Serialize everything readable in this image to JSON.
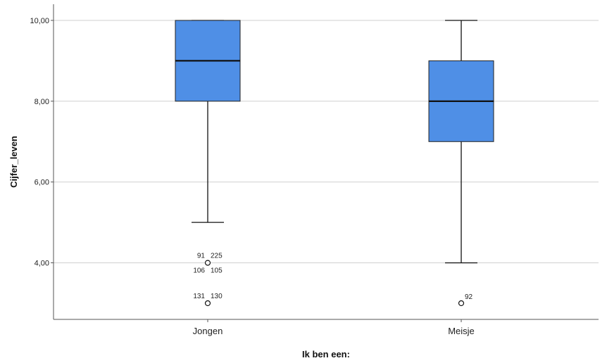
{
  "chart_data": {
    "type": "box",
    "xlabel": "Ik ben een:",
    "ylabel": "Cijfer_leven",
    "ylim": [
      2.6,
      10.4
    ],
    "yticks": [
      {
        "value": 4,
        "label": "4,00"
      },
      {
        "value": 6,
        "label": "6,00"
      },
      {
        "value": 8,
        "label": "8,00"
      },
      {
        "value": 10,
        "label": "10,00"
      }
    ],
    "grid": true,
    "box_color": "#4f8fe6",
    "categories": [
      "Jongen",
      "Meisje"
    ],
    "boxes": [
      {
        "category": "Jongen",
        "whisker_low": 5,
        "q1": 8,
        "median": 9,
        "q3": 10,
        "whisker_high": 10,
        "outliers": [
          {
            "value": 4,
            "labels": [
              "91",
              "225",
              "106",
              "105"
            ]
          },
          {
            "value": 3,
            "labels": [
              "131",
              "130"
            ]
          }
        ]
      },
      {
        "category": "Meisje",
        "whisker_low": 4,
        "q1": 7,
        "median": 8,
        "q3": 9,
        "whisker_high": 10,
        "outliers": [
          {
            "value": 3,
            "labels": [
              "92"
            ]
          }
        ]
      }
    ]
  }
}
